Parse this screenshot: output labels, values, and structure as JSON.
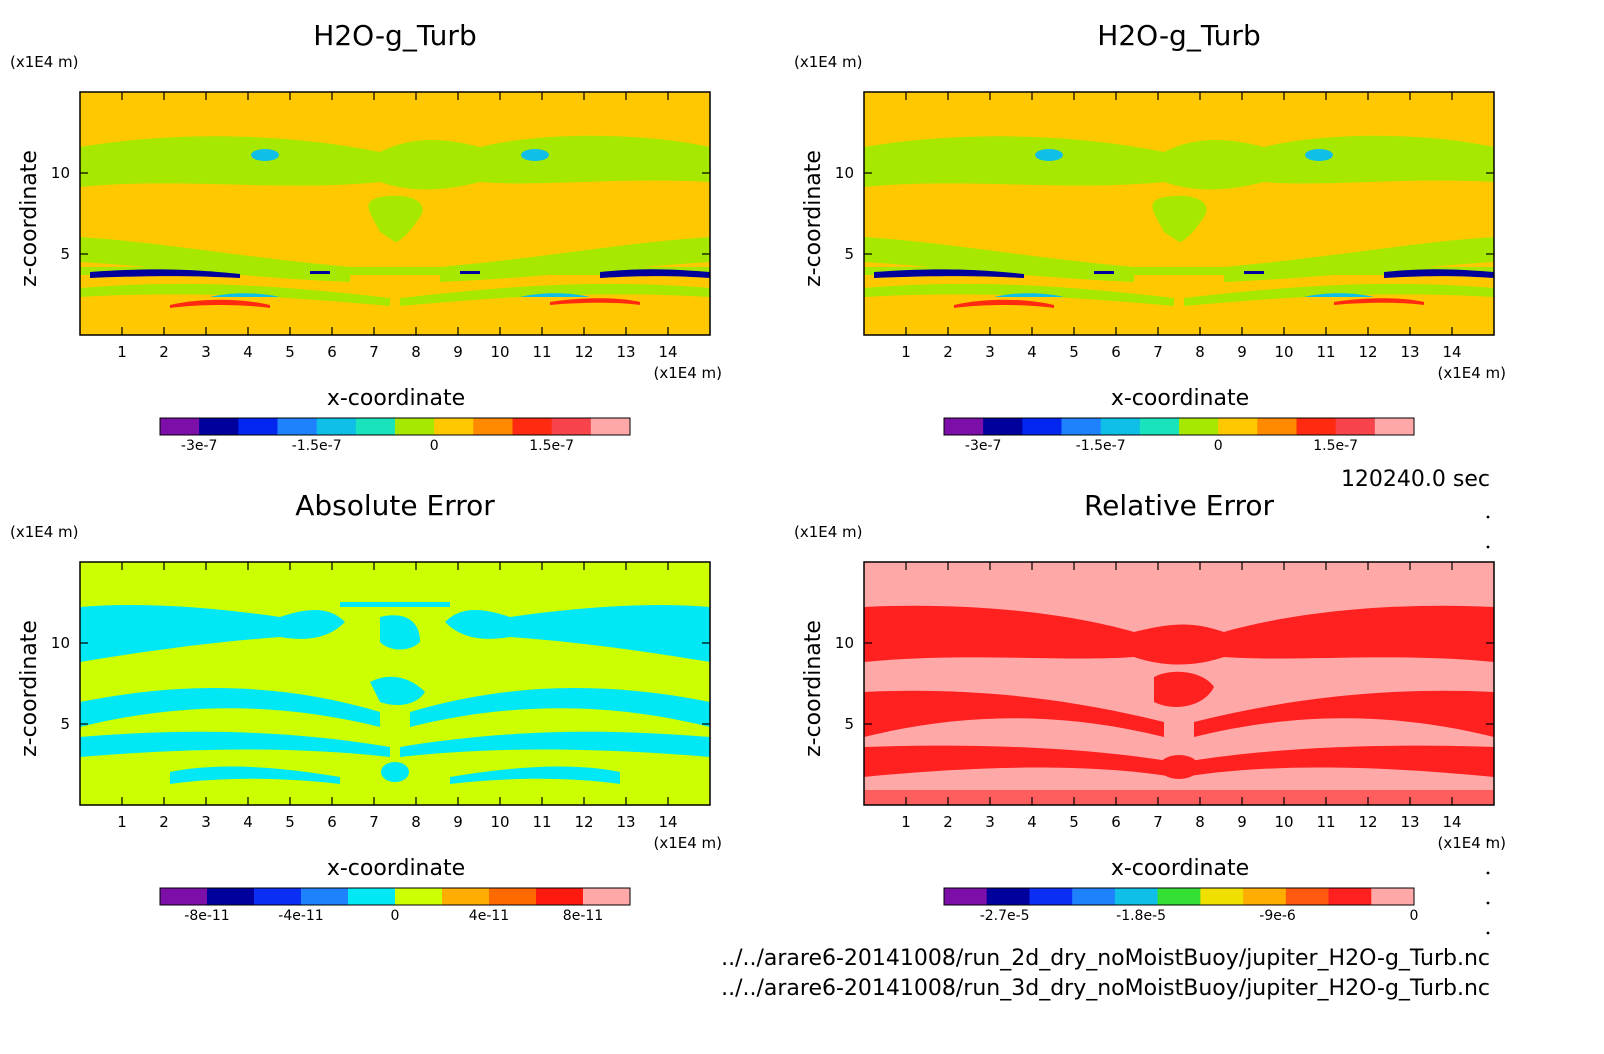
{
  "time_label": "120240.0 sec",
  "file_lines": [
    "../../arare6-20141008/run_2d_dry_noMoistBuoy/jupiter_H2O-g_Turb.nc",
    "../../arare6-20141008/run_3d_dry_noMoistBuoy/jupiter_H2O-g_Turb.nc"
  ],
  "chart_data": [
    {
      "type": "heatmap",
      "title": "H2O-g_Turb",
      "xlabel": "x-coordinate",
      "ylabel": "z-coordinate",
      "x_unit": "(x1E4 m)",
      "y_unit": "(x1E4 m)",
      "xlim": [
        0,
        15
      ],
      "ylim": [
        0,
        15
      ],
      "x_ticks": [
        1,
        2,
        3,
        4,
        5,
        6,
        7,
        8,
        9,
        10,
        11,
        12,
        13,
        14
      ],
      "y_ticks": [
        5,
        10
      ],
      "background_color": "#ffc800",
      "colorbar": {
        "colors": [
          "#7b0fa8",
          "#00009c",
          "#0026f0",
          "#1e82ff",
          "#10bfe8",
          "#19e3bd",
          "#a7e800",
          "#ffc800",
          "#ff8a00",
          "#ff2a10",
          "#f7444c",
          "#ffa8a8"
        ],
        "tick_labels": [
          "-3e-7",
          "-1.5e-7",
          "0",
          "1.5e-7"
        ],
        "tick_values": [
          -3e-07,
          -1.5e-07,
          0,
          1.5e-07
        ],
        "range": [
          -3.5e-07,
          2.5e-07
        ]
      }
    },
    {
      "type": "heatmap",
      "title": "H2O-g_Turb",
      "xlabel": "x-coordinate",
      "ylabel": "z-coordinate",
      "x_unit": "(x1E4 m)",
      "y_unit": "(x1E4 m)",
      "xlim": [
        0,
        15
      ],
      "ylim": [
        0,
        15
      ],
      "x_ticks": [
        1,
        2,
        3,
        4,
        5,
        6,
        7,
        8,
        9,
        10,
        11,
        12,
        13,
        14
      ],
      "y_ticks": [
        5,
        10
      ],
      "background_color": "#ffc800",
      "colorbar": {
        "colors": [
          "#7b0fa8",
          "#00009c",
          "#0026f0",
          "#1e82ff",
          "#10bfe8",
          "#19e3bd",
          "#a7e800",
          "#ffc800",
          "#ff8a00",
          "#ff2a10",
          "#f7444c",
          "#ffa8a8"
        ],
        "tick_labels": [
          "-3e-7",
          "-1.5e-7",
          "0",
          "1.5e-7"
        ],
        "tick_values": [
          -3e-07,
          -1.5e-07,
          0,
          1.5e-07
        ],
        "range": [
          -3.5e-07,
          2.5e-07
        ]
      }
    },
    {
      "type": "heatmap",
      "title": "Absolute Error",
      "xlabel": "x-coordinate",
      "ylabel": "z-coordinate",
      "x_unit": "(x1E4 m)",
      "y_unit": "(x1E4 m)",
      "xlim": [
        0,
        15
      ],
      "ylim": [
        0,
        15
      ],
      "x_ticks": [
        1,
        2,
        3,
        4,
        5,
        6,
        7,
        8,
        9,
        10,
        11,
        12,
        13,
        14
      ],
      "y_ticks": [
        5,
        10
      ],
      "background_color": "#ccff00",
      "colorbar": {
        "colors": [
          "#7b0fa8",
          "#00009c",
          "#0b2ef5",
          "#1e82ff",
          "#00e8f5",
          "#ccff00",
          "#ffad00",
          "#ff6a00",
          "#ff1a10",
          "#ffa8a8"
        ],
        "tick_labels": [
          "-8e-11",
          "-4e-11",
          "0",
          "4e-11",
          "8e-11"
        ],
        "tick_values": [
          -8e-11,
          -4e-11,
          0,
          4e-11,
          8e-11
        ],
        "range": [
          -1e-10,
          1e-10
        ]
      }
    },
    {
      "type": "heatmap",
      "title": "Relative Error",
      "xlabel": "x-coordinate",
      "ylabel": "z-coordinate",
      "x_unit": "(x1E4 m)",
      "y_unit": "(x1E4 m)",
      "xlim": [
        0,
        15
      ],
      "ylim": [
        0,
        15
      ],
      "x_ticks": [
        1,
        2,
        3,
        4,
        5,
        6,
        7,
        8,
        9,
        10,
        11,
        12,
        13,
        14
      ],
      "y_ticks": [
        5,
        10
      ],
      "background_color": "#ffa8a8",
      "colorbar": {
        "colors": [
          "#7b0fa8",
          "#00009c",
          "#0b2ef5",
          "#1e82ff",
          "#10bfe8",
          "#33e033",
          "#f0e000",
          "#ffad00",
          "#ff5a10",
          "#ff2020",
          "#ffa8a8"
        ],
        "tick_labels": [
          "-2.7e-5",
          "-1.8e-5",
          "-9e-6",
          "0"
        ],
        "tick_values": [
          -2.7e-05,
          -1.8e-05,
          -9e-06,
          0
        ],
        "range": [
          -3.1e-05,
          0
        ]
      }
    }
  ]
}
